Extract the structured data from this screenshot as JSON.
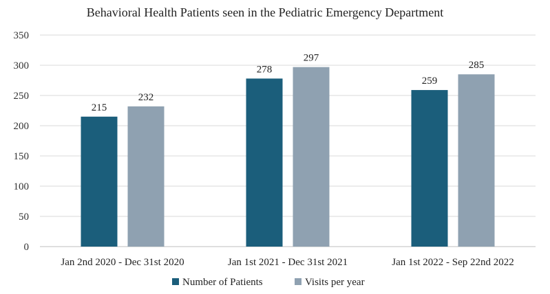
{
  "chart_data": {
    "type": "bar",
    "title": "Behavioral Health Patients seen in the Pediatric Emergency Department",
    "xlabel": "",
    "ylabel": "",
    "ylim": [
      0,
      350
    ],
    "yticks": [
      0,
      50,
      100,
      150,
      200,
      250,
      300,
      350
    ],
    "grid": true,
    "legend_position": "bottom",
    "categories": [
      "Jan 2nd 2020 - Dec 31st 2020",
      "Jan 1st 2021 - Dec 31st 2021",
      "Jan 1st 2022 - Sep 22nd 2022"
    ],
    "series": [
      {
        "name": "Number of Patients",
        "color": "#1b5e7b",
        "values": [
          215,
          278,
          259
        ]
      },
      {
        "name": "Visits per year",
        "color": "#8fa1b1",
        "values": [
          232,
          297,
          285
        ]
      }
    ]
  }
}
